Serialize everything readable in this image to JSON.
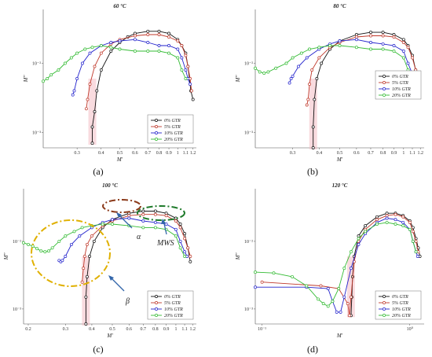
{
  "figure": {
    "colors": {
      "0% GTR": "#111111",
      "5% GTR": "#c0392b",
      "10% GTR": "#2222cc",
      "20% GTR": "#33bb33",
      "highlight": "#f4b8c0",
      "alpha_ellipse": "#8b3a1a",
      "mws_ellipse": "#1e7a2a",
      "beta_ellipse": "#e0b000",
      "arrow": "#3366aa"
    }
  },
  "chart_data": [
    {
      "type": "line",
      "panel_label": "(a)",
      "title": "60 °C",
      "xlabel": "M'",
      "ylabel": "M''",
      "xscale": "log",
      "yscale": "log",
      "xlim": [
        0.2,
        1.25
      ],
      "ylim": [
        0.0006,
        0.06
      ],
      "x_ticks": [
        0.3,
        0.4,
        0.5,
        0.6,
        0.7,
        0.8,
        0.9,
        1,
        1.1,
        1.2
      ],
      "x_tick_labels": [
        "0.3",
        "0.4",
        "0.5",
        "0.6",
        "0.7",
        "0.8",
        "0.9",
        "1",
        "1.1",
        "1.2"
      ],
      "y_ticks": [
        0.001,
        0.01
      ],
      "y_tick_labels": [
        "10⁻³",
        "10⁻²"
      ],
      "legend_position": "bottom-right",
      "series": [
        {
          "name": "0% GTR",
          "x": [
            0.36,
            0.36,
            0.37,
            0.38,
            0.4,
            0.45,
            0.5,
            0.55,
            0.6,
            0.7,
            0.8,
            0.9,
            1.0,
            1.05,
            1.1,
            1.13,
            1.15,
            1.17,
            1.2
          ],
          "y": [
            0.0007,
            0.0012,
            0.002,
            0.004,
            0.008,
            0.015,
            0.02,
            0.024,
            0.027,
            0.029,
            0.029,
            0.027,
            0.022,
            0.018,
            0.014,
            0.009,
            0.006,
            0.004,
            0.003
          ]
        },
        {
          "name": "5% GTR",
          "x": [
            0.335,
            0.34,
            0.35,
            0.37,
            0.4,
            0.45,
            0.5,
            0.6,
            0.7,
            0.8,
            0.9,
            1.0,
            1.05,
            1.1,
            1.13,
            1.16,
            1.18
          ],
          "y": [
            0.0022,
            0.003,
            0.005,
            0.009,
            0.014,
            0.019,
            0.022,
            0.025,
            0.026,
            0.026,
            0.024,
            0.021,
            0.018,
            0.013,
            0.009,
            0.006,
            0.004
          ]
        },
        {
          "name": "10% GTR",
          "x": [
            0.285,
            0.29,
            0.3,
            0.32,
            0.35,
            0.4,
            0.45,
            0.5,
            0.6,
            0.7,
            0.8,
            0.9,
            1.0,
            1.05,
            1.1,
            1.13,
            1.16
          ],
          "y": [
            0.0035,
            0.004,
            0.006,
            0.01,
            0.014,
            0.018,
            0.02,
            0.021,
            0.022,
            0.02,
            0.018,
            0.018,
            0.016,
            0.012,
            0.008,
            0.006,
            0.005
          ]
        },
        {
          "name": "20% GTR",
          "x": [
            0.2,
            0.21,
            0.22,
            0.24,
            0.26,
            0.28,
            0.3,
            0.33,
            0.36,
            0.4,
            0.45,
            0.5,
            0.6,
            0.7,
            0.8,
            0.9,
            1.0,
            1.05,
            1.1
          ],
          "y": [
            0.0055,
            0.006,
            0.0068,
            0.008,
            0.01,
            0.012,
            0.014,
            0.016,
            0.017,
            0.018,
            0.017,
            0.016,
            0.015,
            0.015,
            0.015,
            0.014,
            0.012,
            0.008,
            0.006
          ]
        }
      ]
    },
    {
      "type": "line",
      "panel_label": "(b)",
      "title": "80 °C",
      "xlabel": "M'",
      "ylabel": "M''",
      "xscale": "log",
      "yscale": "log",
      "xlim": [
        0.2,
        1.25
      ],
      "ylim": [
        0.0006,
        0.06
      ],
      "x_ticks": [
        0.3,
        0.4,
        0.5,
        0.6,
        0.7,
        0.8,
        0.9,
        1,
        1.1,
        1.2
      ],
      "x_tick_labels": [
        "0.3",
        "0.4",
        "0.5",
        "0.6",
        "0.7",
        "0.8",
        "0.9",
        "1",
        "1.1",
        "1.2"
      ],
      "y_ticks": [
        0.001,
        0.01
      ],
      "y_tick_labels": [
        "10⁻³",
        "10⁻²"
      ],
      "legend_position": "top-right",
      "series": [
        {
          "name": "0% GTR",
          "x": [
            0.375,
            0.375,
            0.38,
            0.39,
            0.41,
            0.45,
            0.5,
            0.6,
            0.7,
            0.8,
            0.9,
            1.0,
            1.05,
            1.1,
            1.14,
            1.17
          ],
          "y": [
            0.0006,
            0.0012,
            0.003,
            0.006,
            0.01,
            0.016,
            0.021,
            0.026,
            0.028,
            0.028,
            0.026,
            0.022,
            0.018,
            0.013,
            0.008,
            0.005
          ]
        },
        {
          "name": "5% GTR",
          "x": [
            0.35,
            0.355,
            0.36,
            0.37,
            0.4,
            0.45,
            0.5,
            0.6,
            0.7,
            0.8,
            0.9,
            1.0,
            1.05,
            1.1,
            1.14,
            1.17
          ],
          "y": [
            0.0025,
            0.003,
            0.005,
            0.008,
            0.012,
            0.017,
            0.02,
            0.024,
            0.025,
            0.025,
            0.024,
            0.02,
            0.017,
            0.012,
            0.008,
            0.006
          ]
        },
        {
          "name": "10% GTR",
          "x": [
            0.29,
            0.295,
            0.3,
            0.32,
            0.35,
            0.4,
            0.45,
            0.5,
            0.6,
            0.7,
            0.8,
            0.9,
            1.0,
            1.05,
            1.1,
            1.13
          ],
          "y": [
            0.0052,
            0.006,
            0.0065,
            0.009,
            0.012,
            0.016,
            0.019,
            0.021,
            0.022,
            0.02,
            0.019,
            0.018,
            0.015,
            0.01,
            0.007,
            0.006
          ]
        },
        {
          "name": "20% GTR",
          "x": [
            0.2,
            0.21,
            0.22,
            0.23,
            0.25,
            0.28,
            0.3,
            0.33,
            0.36,
            0.4,
            0.45,
            0.5,
            0.6,
            0.7,
            0.8,
            0.9,
            1.0,
            1.05,
            1.1
          ],
          "y": [
            0.0085,
            0.0075,
            0.0072,
            0.0075,
            0.0085,
            0.01,
            0.012,
            0.014,
            0.016,
            0.017,
            0.018,
            0.018,
            0.017,
            0.016,
            0.016,
            0.015,
            0.012,
            0.008,
            0.006
          ]
        }
      ]
    },
    {
      "type": "line",
      "panel_label": "(c)",
      "title": "100 °C",
      "xlabel": "M'",
      "ylabel": "M''",
      "xscale": "log",
      "yscale": "log",
      "xlim": [
        0.19,
        1.25
      ],
      "ylim": [
        0.0006,
        0.06
      ],
      "x_ticks": [
        0.2,
        0.3,
        0.4,
        0.5,
        0.6,
        0.7,
        0.8,
        0.9,
        1,
        1.1,
        1.2
      ],
      "x_tick_labels": [
        "0.2",
        "0.3",
        "0.4",
        "0.5",
        "0.6",
        "0.7",
        "0.8",
        "0.9",
        "1",
        "1.1",
        "1.2"
      ],
      "y_ticks": [
        0.001,
        0.01
      ],
      "y_tick_labels": [
        "10⁻³",
        "10⁻²"
      ],
      "legend_position": "bottom-right",
      "annotations": [
        "α",
        "MWS",
        "β"
      ],
      "series": [
        {
          "name": "0% GTR",
          "x": [
            0.375,
            0.375,
            0.38,
            0.39,
            0.41,
            0.45,
            0.5,
            0.6,
            0.7,
            0.8,
            0.9,
            1.0,
            1.05,
            1.1,
            1.14,
            1.17
          ],
          "y": [
            0.0006,
            0.0015,
            0.003,
            0.006,
            0.01,
            0.016,
            0.021,
            0.026,
            0.028,
            0.028,
            0.026,
            0.022,
            0.018,
            0.013,
            0.008,
            0.005
          ]
        },
        {
          "name": "5% GTR",
          "x": [
            0.36,
            0.365,
            0.37,
            0.38,
            0.4,
            0.45,
            0.5,
            0.6,
            0.7,
            0.8,
            0.9,
            1.0,
            1.05,
            1.1,
            1.14,
            1.17
          ],
          "y": [
            0.0025,
            0.004,
            0.006,
            0.009,
            0.012,
            0.017,
            0.02,
            0.024,
            0.025,
            0.025,
            0.024,
            0.02,
            0.016,
            0.011,
            0.008,
            0.006
          ]
        },
        {
          "name": "10% GTR",
          "x": [
            0.28,
            0.285,
            0.29,
            0.3,
            0.32,
            0.35,
            0.4,
            0.45,
            0.5,
            0.6,
            0.7,
            0.8,
            0.9,
            1.0,
            1.05,
            1.1,
            1.13
          ],
          "y": [
            0.0052,
            0.005,
            0.0052,
            0.006,
            0.009,
            0.012,
            0.016,
            0.019,
            0.021,
            0.022,
            0.02,
            0.019,
            0.018,
            0.015,
            0.01,
            0.007,
            0.006
          ]
        },
        {
          "name": "20% GTR",
          "x": [
            0.19,
            0.2,
            0.21,
            0.22,
            0.23,
            0.24,
            0.25,
            0.26,
            0.28,
            0.3,
            0.33,
            0.36,
            0.4,
            0.45,
            0.5,
            0.6,
            0.7,
            0.8,
            0.9,
            1.0,
            1.05,
            1.1
          ],
          "y": [
            0.0095,
            0.009,
            0.0085,
            0.0078,
            0.0072,
            0.007,
            0.0072,
            0.008,
            0.01,
            0.012,
            0.014,
            0.016,
            0.017,
            0.018,
            0.018,
            0.017,
            0.016,
            0.016,
            0.015,
            0.012,
            0.008,
            0.006
          ]
        }
      ]
    },
    {
      "type": "line",
      "panel_label": "(d)",
      "title": "120 °C",
      "xlabel": "M'",
      "ylabel": "M''",
      "xscale": "log",
      "yscale": "log",
      "xlim": [
        0.09,
        1.25
      ],
      "ylim": [
        0.0006,
        0.06
      ],
      "x_ticks": [
        0.1,
        1
      ],
      "x_tick_labels": [
        "10⁻¹",
        "10⁰"
      ],
      "y_ticks": [
        0.001,
        0.01
      ],
      "y_tick_labels": [
        "10⁻³",
        "10⁻²"
      ],
      "legend_position": "bottom-right",
      "series": [
        {
          "name": "0% GTR",
          "x": [
            0.4,
            0.405,
            0.41,
            0.42,
            0.45,
            0.5,
            0.6,
            0.7,
            0.8,
            0.9,
            1.0,
            1.05,
            1.1,
            1.14,
            1.17
          ],
          "y": [
            0.0008,
            0.0015,
            0.003,
            0.006,
            0.012,
            0.017,
            0.023,
            0.026,
            0.026,
            0.024,
            0.02,
            0.016,
            0.011,
            0.008,
            0.006
          ]
        },
        {
          "name": "5% GTR",
          "x": [
            0.1,
            0.25,
            0.33,
            0.38,
            0.39,
            0.4,
            0.42,
            0.45,
            0.5,
            0.6,
            0.7,
            0.8,
            0.9,
            1.0,
            1.05,
            1.1,
            1.14
          ],
          "y": [
            0.0025,
            0.0022,
            0.002,
            0.0012,
            0.0008,
            0.0015,
            0.005,
            0.01,
            0.015,
            0.021,
            0.024,
            0.025,
            0.023,
            0.019,
            0.014,
            0.01,
            0.007
          ]
        },
        {
          "name": "10% GTR",
          "x": [
            0.09,
            0.2,
            0.28,
            0.3,
            0.32,
            0.34,
            0.36,
            0.4,
            0.45,
            0.5,
            0.6,
            0.7,
            0.8,
            0.9,
            1.0,
            1.05,
            1.1,
            1.13
          ],
          "y": [
            0.0021,
            0.0021,
            0.002,
            0.0013,
            0.0009,
            0.0009,
            0.0015,
            0.004,
            0.009,
            0.013,
            0.019,
            0.022,
            0.021,
            0.019,
            0.015,
            0.01,
            0.007,
            0.006
          ]
        },
        {
          "name": "20% GTR",
          "x": [
            0.09,
            0.12,
            0.16,
            0.2,
            0.24,
            0.26,
            0.28,
            0.3,
            0.33,
            0.36,
            0.4,
            0.45,
            0.5,
            0.6,
            0.7,
            0.8,
            0.9,
            1.0,
            1.05,
            1.1
          ],
          "y": [
            0.0035,
            0.0034,
            0.003,
            0.0022,
            0.0014,
            0.0012,
            0.0011,
            0.0013,
            0.002,
            0.004,
            0.007,
            0.011,
            0.014,
            0.018,
            0.019,
            0.018,
            0.017,
            0.015,
            0.01,
            0.007
          ]
        }
      ]
    }
  ]
}
